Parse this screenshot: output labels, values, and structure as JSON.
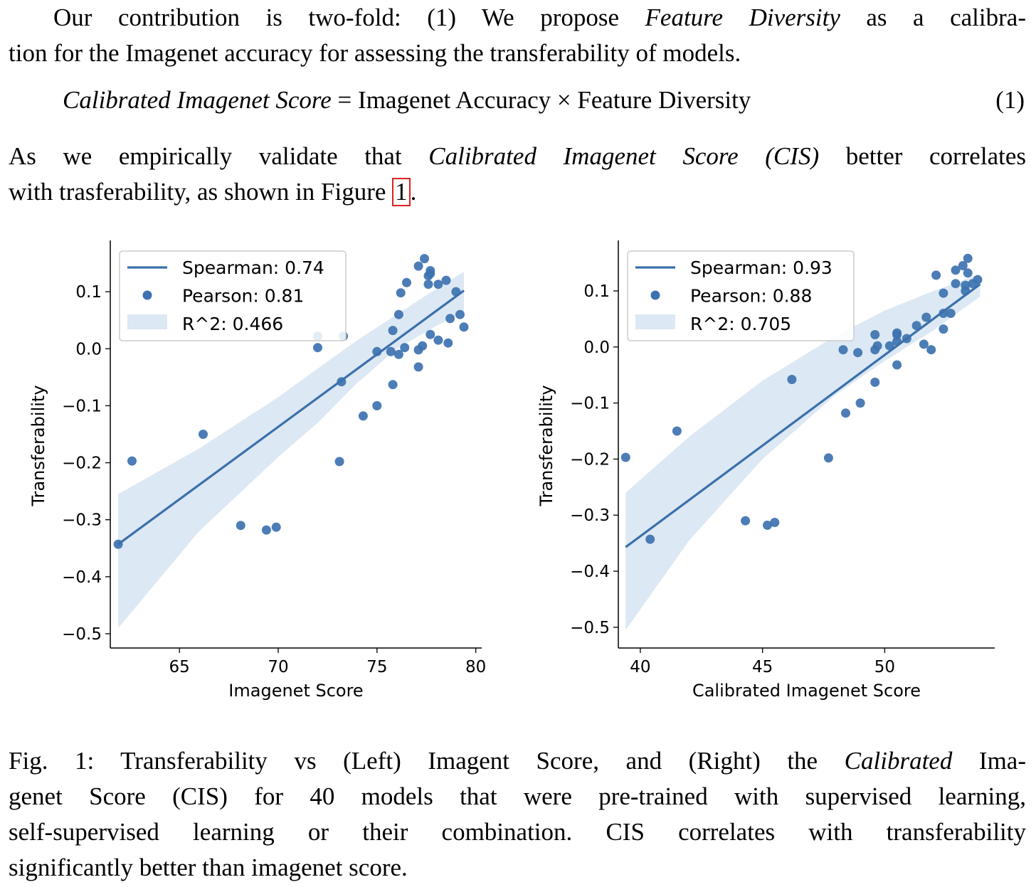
{
  "intro": {
    "line1_a": "Our contribution is two-fold: (1) We propose ",
    "line1_b": "Feature Diversity",
    "line1_c": " as a calibra-",
    "line2": "tion for the Imagenet accuracy for assessing the transferability of models."
  },
  "equation": {
    "lhs": "Calibrated Imagenet Score",
    "eq": " = ",
    "rhs": "Imagenet Accuracy × Feature Diversity",
    "number": "(1)"
  },
  "validate": {
    "line1_a": "As we empirically validate that ",
    "line1_b": "Calibrated Imagenet Score (CIS)",
    "line1_c": " better correlates",
    "line2_a": "with trasferability, as shown in Figure ",
    "line2_ref": "1",
    "line2_b": "."
  },
  "caption": {
    "line1_a": "Fig. 1: Transferability vs (Left) Imagent Score, and (Right) the ",
    "line1_b": "Calibrated",
    "line1_c": " Ima-",
    "line2": "genet Score (CIS) for 40 models that were pre-trained with supervised learning,",
    "line3": "self-supervised learning or their combination. CIS correlates with transferability",
    "line4": "significantly better than imagenet score."
  },
  "colors": {
    "point": "#3d72b0",
    "line": "#3a70ab",
    "band": "#dce8f3",
    "figref_border": "#e02020"
  },
  "chart_data": [
    {
      "type": "scatter",
      "xlabel": "Imagenet Score",
      "ylabel": "Transferability",
      "xlim": [
        61.5,
        80.3
      ],
      "ylim": [
        -0.525,
        0.185
      ],
      "xticks": [
        65,
        70,
        75,
        80
      ],
      "yticks": [
        -0.5,
        -0.4,
        -0.3,
        -0.2,
        -0.1,
        0.0,
        0.1
      ],
      "ytick_labels": [
        "−0.5",
        "−0.4",
        "−0.3",
        "−0.2",
        "−0.1",
        "0.0",
        "0.1"
      ],
      "legend": [
        "Spearman: 0.74",
        "Pearson: 0.81",
        "R^2: 0.466"
      ],
      "legend_position": "top-left",
      "fit": {
        "x": [
          61.9,
          79.4
        ],
        "y": [
          -0.343,
          0.102
        ]
      },
      "band": {
        "x": [
          61.9,
          66,
          70,
          72,
          74,
          76,
          78,
          79.4
        ],
        "upper": [
          -0.255,
          -0.175,
          -0.085,
          -0.035,
          0.015,
          0.06,
          0.105,
          0.135
        ],
        "lower": [
          -0.49,
          -0.32,
          -0.19,
          -0.13,
          -0.06,
          0.0,
          0.04,
          0.065
        ]
      },
      "points": [
        [
          61.9,
          -0.343
        ],
        [
          62.6,
          -0.197
        ],
        [
          66.2,
          -0.15
        ],
        [
          68.1,
          -0.31
        ],
        [
          69.4,
          -0.318
        ],
        [
          69.9,
          -0.313
        ],
        [
          72.0,
          0.002
        ],
        [
          72.0,
          0.022
        ],
        [
          73.1,
          -0.198
        ],
        [
          73.2,
          -0.058
        ],
        [
          73.3,
          0.022
        ],
        [
          74.3,
          -0.118
        ],
        [
          75.0,
          -0.1
        ],
        [
          75.0,
          -0.005
        ],
        [
          75.7,
          -0.005
        ],
        [
          75.8,
          -0.063
        ],
        [
          75.8,
          0.032
        ],
        [
          76.1,
          -0.01
        ],
        [
          76.1,
          0.06
        ],
        [
          76.2,
          0.098
        ],
        [
          76.4,
          0.002
        ],
        [
          76.5,
          0.116
        ],
        [
          77.1,
          -0.002
        ],
        [
          77.1,
          -0.032
        ],
        [
          77.1,
          0.145
        ],
        [
          77.3,
          0.005
        ],
        [
          77.4,
          0.158
        ],
        [
          77.6,
          0.113
        ],
        [
          77.6,
          0.128
        ],
        [
          77.7,
          0.137
        ],
        [
          77.7,
          0.132
        ],
        [
          77.7,
          0.025
        ],
        [
          78.1,
          0.015
        ],
        [
          78.1,
          0.113
        ],
        [
          78.5,
          0.12
        ],
        [
          78.6,
          0.01
        ],
        [
          78.7,
          0.053
        ],
        [
          79.0,
          0.1
        ],
        [
          79.2,
          0.06
        ],
        [
          79.4,
          0.038
        ]
      ]
    },
    {
      "type": "scatter",
      "xlabel": "Calibrated Imagenet Score",
      "ylabel": "Transferability",
      "xlim": [
        39.1,
        54.5
      ],
      "ylim": [
        -0.537,
        0.185
      ],
      "xticks": [
        40,
        45,
        50
      ],
      "yticks": [
        -0.5,
        -0.4,
        -0.3,
        -0.2,
        -0.1,
        0.0,
        0.1
      ],
      "ytick_labels": [
        "−0.5",
        "−0.4",
        "−0.3",
        "−0.2",
        "−0.1",
        "0.0",
        "0.1"
      ],
      "legend": [
        "Spearman: 0.93",
        "Pearson: 0.88",
        "R^2: 0.705"
      ],
      "legend_position": "top-left",
      "fit": {
        "x": [
          39.4,
          53.9
        ],
        "y": [
          -0.357,
          0.112
        ]
      },
      "band": {
        "x": [
          39.4,
          42,
          45,
          48,
          50,
          52,
          53.9
        ],
        "upper": [
          -0.26,
          -0.16,
          -0.06,
          0.02,
          0.065,
          0.1,
          0.13
        ],
        "lower": [
          -0.505,
          -0.345,
          -0.2,
          -0.085,
          -0.025,
          0.03,
          0.09
        ]
      },
      "points": [
        [
          39.4,
          -0.197
        ],
        [
          40.4,
          -0.343
        ],
        [
          41.5,
          -0.15
        ],
        [
          44.3,
          -0.31
        ],
        [
          45.2,
          -0.318
        ],
        [
          45.5,
          -0.313
        ],
        [
          46.2,
          -0.058
        ],
        [
          47.7,
          -0.198
        ],
        [
          48.3,
          -0.005
        ],
        [
          48.4,
          -0.118
        ],
        [
          48.9,
          -0.01
        ],
        [
          49.0,
          -0.1
        ],
        [
          49.6,
          -0.063
        ],
        [
          49.6,
          -0.005
        ],
        [
          49.6,
          0.022
        ],
        [
          49.7,
          0.002
        ],
        [
          50.2,
          0.002
        ],
        [
          50.5,
          -0.032
        ],
        [
          50.5,
          0.01
        ],
        [
          50.5,
          0.022
        ],
        [
          50.5,
          0.025
        ],
        [
          50.9,
          0.015
        ],
        [
          51.3,
          0.038
        ],
        [
          51.6,
          0.005
        ],
        [
          51.7,
          0.053
        ],
        [
          51.9,
          -0.005
        ],
        [
          52.1,
          0.128
        ],
        [
          52.4,
          0.06
        ],
        [
          52.4,
          0.096
        ],
        [
          52.4,
          0.032
        ],
        [
          52.7,
          0.06
        ],
        [
          52.9,
          0.113
        ],
        [
          52.9,
          0.137
        ],
        [
          53.2,
          0.145
        ],
        [
          53.3,
          0.11
        ],
        [
          53.3,
          0.1
        ],
        [
          53.4,
          0.132
        ],
        [
          53.4,
          0.158
        ],
        [
          53.6,
          0.113
        ],
        [
          53.8,
          0.12
        ]
      ]
    }
  ]
}
